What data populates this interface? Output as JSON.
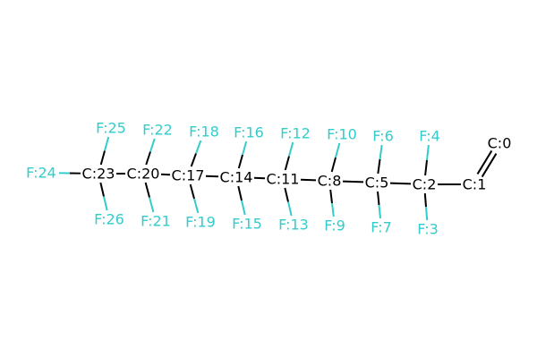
{
  "molecule": {
    "colors": {
      "carbon": "#000000",
      "fluorine": "#33cccc",
      "bond": "#000000"
    },
    "atoms": [
      {
        "id": "C0",
        "label": "C:0",
        "element": "C"
      },
      {
        "id": "C1",
        "label": "C:1",
        "element": "C"
      },
      {
        "id": "C2",
        "label": "C:2",
        "element": "C"
      },
      {
        "id": "F3",
        "label": "F:3",
        "element": "F"
      },
      {
        "id": "F4",
        "label": "F:4",
        "element": "F"
      },
      {
        "id": "C5",
        "label": "C:5",
        "element": "C"
      },
      {
        "id": "F6",
        "label": "F:6",
        "element": "F"
      },
      {
        "id": "F7",
        "label": "F:7",
        "element": "F"
      },
      {
        "id": "C8",
        "label": "C:8",
        "element": "C"
      },
      {
        "id": "F9",
        "label": "F:9",
        "element": "F"
      },
      {
        "id": "F10",
        "label": "F:10",
        "element": "F"
      },
      {
        "id": "C11",
        "label": "C:11",
        "element": "C"
      },
      {
        "id": "F12",
        "label": "F:12",
        "element": "F"
      },
      {
        "id": "F13",
        "label": "F:13",
        "element": "F"
      },
      {
        "id": "C14",
        "label": "C:14",
        "element": "C"
      },
      {
        "id": "F15",
        "label": "F:15",
        "element": "F"
      },
      {
        "id": "F16",
        "label": "F:16",
        "element": "F"
      },
      {
        "id": "C17",
        "label": "C:17",
        "element": "C"
      },
      {
        "id": "F18",
        "label": "F:18",
        "element": "F"
      },
      {
        "id": "F19",
        "label": "F:19",
        "element": "F"
      },
      {
        "id": "C20",
        "label": "C:20",
        "element": "C"
      },
      {
        "id": "F21",
        "label": "F:21",
        "element": "F"
      },
      {
        "id": "F22",
        "label": "F:22",
        "element": "F"
      },
      {
        "id": "C23",
        "label": "C:23",
        "element": "C"
      },
      {
        "id": "F24",
        "label": "F:24",
        "element": "F"
      },
      {
        "id": "F25",
        "label": "F:25",
        "element": "F"
      },
      {
        "id": "F26",
        "label": "F:26",
        "element": "F"
      }
    ],
    "bonds": [
      {
        "from": "C0",
        "to": "C1",
        "order": 2
      },
      {
        "from": "C1",
        "to": "C2",
        "order": 1
      },
      {
        "from": "C2",
        "to": "F3",
        "order": 1
      },
      {
        "from": "C2",
        "to": "F4",
        "order": 1
      },
      {
        "from": "C2",
        "to": "C5",
        "order": 1
      },
      {
        "from": "C5",
        "to": "F6",
        "order": 1
      },
      {
        "from": "C5",
        "to": "F7",
        "order": 1
      },
      {
        "from": "C5",
        "to": "C8",
        "order": 1
      },
      {
        "from": "C8",
        "to": "F9",
        "order": 1
      },
      {
        "from": "C8",
        "to": "F10",
        "order": 1
      },
      {
        "from": "C8",
        "to": "C11",
        "order": 1
      },
      {
        "from": "C11",
        "to": "F12",
        "order": 1
      },
      {
        "from": "C11",
        "to": "F13",
        "order": 1
      },
      {
        "from": "C11",
        "to": "C14",
        "order": 1
      },
      {
        "from": "C14",
        "to": "F15",
        "order": 1
      },
      {
        "from": "C14",
        "to": "F16",
        "order": 1
      },
      {
        "from": "C14",
        "to": "C17",
        "order": 1
      },
      {
        "from": "C17",
        "to": "F18",
        "order": 1
      },
      {
        "from": "C17",
        "to": "F19",
        "order": 1
      },
      {
        "from": "C17",
        "to": "C20",
        "order": 1
      },
      {
        "from": "C20",
        "to": "F21",
        "order": 1
      },
      {
        "from": "C20",
        "to": "F22",
        "order": 1
      },
      {
        "from": "C20",
        "to": "C23",
        "order": 1
      },
      {
        "from": "C23",
        "to": "F24",
        "order": 1
      },
      {
        "from": "C23",
        "to": "F25",
        "order": 1
      },
      {
        "from": "C23",
        "to": "F26",
        "order": 1
      }
    ]
  }
}
